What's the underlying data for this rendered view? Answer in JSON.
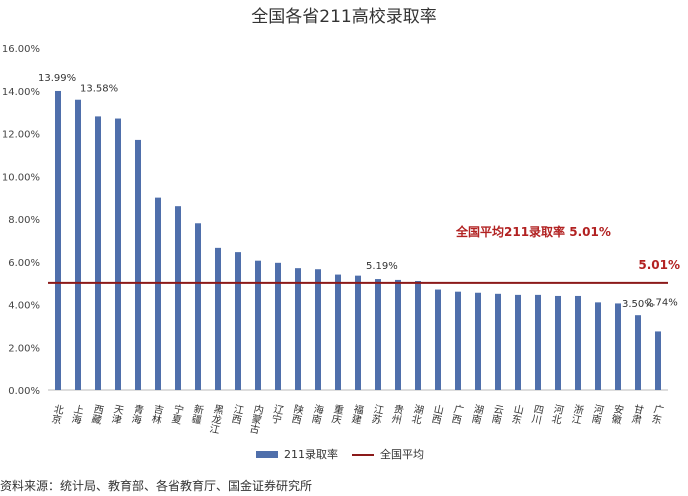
{
  "chart_data": {
    "type": "bar",
    "title": "全国各省211高校录取率",
    "categories": [
      "北京",
      "上海",
      "西藏",
      "天津",
      "青海",
      "吉林",
      "宁夏",
      "新疆",
      "黑龙江",
      "江西",
      "内蒙古",
      "辽宁",
      "陕西",
      "海南",
      "重庆",
      "福建",
      "江苏",
      "贵州",
      "湖北",
      "山西",
      "广西",
      "湖南",
      "云南",
      "山东",
      "四川",
      "河北",
      "浙江",
      "河南",
      "安徽",
      "甘肃",
      "广东"
    ],
    "series": [
      {
        "name": "211录取率",
        "color": "#4f6fab",
        "values": [
          13.99,
          13.58,
          12.8,
          12.7,
          11.7,
          9.0,
          8.6,
          7.8,
          6.65,
          6.45,
          6.05,
          5.95,
          5.7,
          5.65,
          5.4,
          5.35,
          5.19,
          5.15,
          5.1,
          4.7,
          4.6,
          4.55,
          4.5,
          4.45,
          4.45,
          4.4,
          4.4,
          4.1,
          4.05,
          3.5,
          2.74
        ]
      }
    ],
    "data_labels": [
      {
        "index": 0,
        "text": "13.99%"
      },
      {
        "index": 1,
        "text": "13.58%"
      },
      {
        "index": 16,
        "text": "5.19%"
      },
      {
        "index": 29,
        "text": "3.50%"
      },
      {
        "index": 30,
        "text": "2.74%"
      }
    ],
    "average": {
      "name": "全国平均",
      "value": 5.01,
      "label": "5.01%",
      "color": "#8b1a1a",
      "annotation": "全国平均211录取率 5.01%",
      "annotation_color": "#b22222"
    },
    "yticks": [
      "0.00%",
      "2.00%",
      "4.00%",
      "6.00%",
      "8.00%",
      "10.00%",
      "12.00%",
      "14.00%",
      "16.00%"
    ],
    "ylim": [
      0,
      16
    ],
    "grid": false,
    "legend_position": "bottom"
  },
  "source": "资料来源：统计局、教育部、各省教育厅、国金证券研究所"
}
